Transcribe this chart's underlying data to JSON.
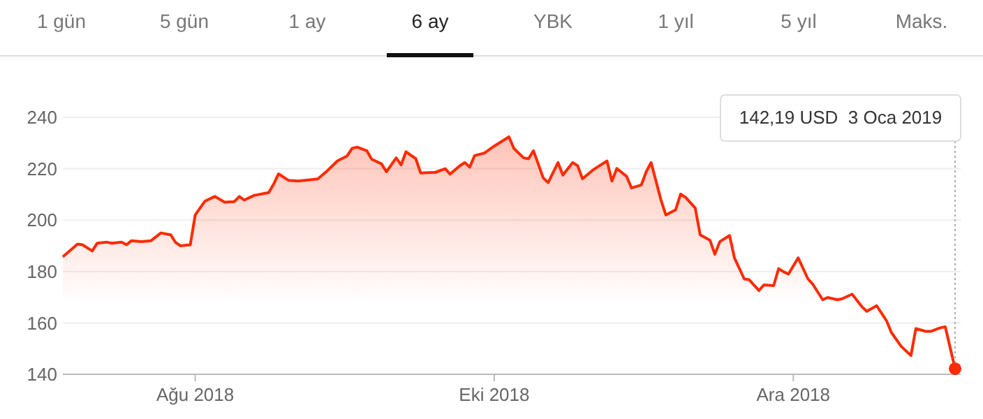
{
  "chart_data": {
    "type": "area",
    "x": [
      "2018-07-05",
      "2018-07-08",
      "2018-07-09",
      "2018-07-11",
      "2018-07-12",
      "2018-07-14",
      "2018-07-15",
      "2018-07-17",
      "2018-07-18",
      "2018-07-19",
      "2018-07-21",
      "2018-07-23",
      "2018-07-25",
      "2018-07-27",
      "2018-07-28",
      "2018-07-29",
      "2018-07-31",
      "2018-08-01",
      "2018-08-03",
      "2018-08-05",
      "2018-08-07",
      "2018-08-09",
      "2018-08-10",
      "2018-08-11",
      "2018-08-13",
      "2018-08-16",
      "2018-08-17",
      "2018-08-18",
      "2018-08-20",
      "2018-08-22",
      "2018-08-26",
      "2018-08-28",
      "2018-08-30",
      "2018-09-01",
      "2018-09-02",
      "2018-09-03",
      "2018-09-05",
      "2018-09-06",
      "2018-09-08",
      "2018-09-09",
      "2018-09-11",
      "2018-09-12",
      "2018-09-13",
      "2018-09-15",
      "2018-09-16",
      "2018-09-19",
      "2018-09-21",
      "2018-09-22",
      "2018-09-24",
      "2018-09-25",
      "2018-09-26",
      "2018-09-27",
      "2018-09-29",
      "2018-10-01",
      "2018-10-04",
      "2018-10-05",
      "2018-10-07",
      "2018-10-08",
      "2018-10-09",
      "2018-10-11",
      "2018-10-12",
      "2018-10-14",
      "2018-10-15",
      "2018-10-17",
      "2018-10-18",
      "2018-10-19",
      "2018-10-21",
      "2018-10-22",
      "2018-10-24",
      "2018-10-25",
      "2018-10-26",
      "2018-10-28",
      "2018-10-29",
      "2018-10-31",
      "2018-11-01",
      "2018-11-02",
      "2018-11-04",
      "2018-11-05",
      "2018-11-07",
      "2018-11-08",
      "2018-11-09",
      "2018-11-11",
      "2018-11-12",
      "2018-11-14",
      "2018-11-15",
      "2018-11-16",
      "2018-11-18",
      "2018-11-19",
      "2018-11-21",
      "2018-11-22",
      "2018-11-24",
      "2018-11-25",
      "2018-11-27",
      "2018-11-28",
      "2018-11-29",
      "2018-11-30",
      "2018-12-02",
      "2018-12-04",
      "2018-12-05",
      "2018-12-07",
      "2018-12-08",
      "2018-12-10",
      "2018-12-11",
      "2018-12-13",
      "2018-12-15",
      "2018-12-16",
      "2018-12-18",
      "2018-12-20",
      "2018-12-21",
      "2018-12-23",
      "2018-12-25",
      "2018-12-26",
      "2018-12-28",
      "2018-12-29",
      "2018-12-31",
      "2019-01-01",
      "2019-01-03"
    ],
    "series": [
      {
        "color": "#ff2a00",
        "values": [
          185.7,
          190.7,
          190.4,
          188,
          191,
          191.4,
          191,
          191.4,
          190.4,
          192,
          191.6,
          192,
          195,
          194.3,
          191.3,
          190,
          190.4,
          202,
          207.4,
          209.2,
          207,
          207.2,
          209.2,
          207.8,
          209.6,
          210.7,
          214,
          218,
          215.5,
          215.2,
          216,
          219.3,
          223,
          225,
          227.9,
          228.4,
          227,
          223.7,
          221.9,
          218.8,
          224.2,
          221.5,
          226.6,
          223.9,
          218.3,
          218.6,
          220,
          217.9,
          221.2,
          222.4,
          220.6,
          225.1,
          226.1,
          228.8,
          232.4,
          227.9,
          224.2,
          223.9,
          227,
          216.4,
          214.6,
          222.4,
          217.5,
          222.4,
          221.2,
          216.1,
          219.3,
          220.6,
          223,
          215.2,
          220.1,
          217,
          212.5,
          213.7,
          218.8,
          222.4,
          207.9,
          202,
          204,
          210.1,
          208.9,
          204.7,
          194.3,
          192.2,
          186.7,
          191.6,
          194,
          185.3,
          177.1,
          176.8,
          172.6,
          174.8,
          174.5,
          181.1,
          179.9,
          179,
          185.3,
          177.1,
          175,
          169,
          169.9,
          169,
          169.4,
          171.2,
          166.3,
          164.5,
          166.7,
          160.9,
          156.3,
          150.9,
          147.3,
          157.8,
          156.7,
          156.7,
          158.1,
          158.5,
          142.19
        ]
      }
    ],
    "xlim": [
      "2018-07-05",
      "2019-01-03"
    ],
    "xticks": [
      {
        "value": "2018-08-01",
        "label": "Ağu 2018"
      },
      {
        "value": "2018-10-01",
        "label": "Eki 2018"
      },
      {
        "value": "2018-12-01",
        "label": "Ara 2018"
      }
    ],
    "ylim": [
      140,
      240
    ],
    "yticks": [
      140,
      160,
      180,
      200,
      220,
      240
    ],
    "grid": "y",
    "marker": "none",
    "line_style": "solid",
    "annotations": [
      "1 gün",
      "5 gün",
      "1 ay",
      "6 ay",
      "YBK",
      "1 yıl",
      "5 yıl",
      "Maks.",
      "142,19 USD  3 Oca 2019"
    ]
  }
}
